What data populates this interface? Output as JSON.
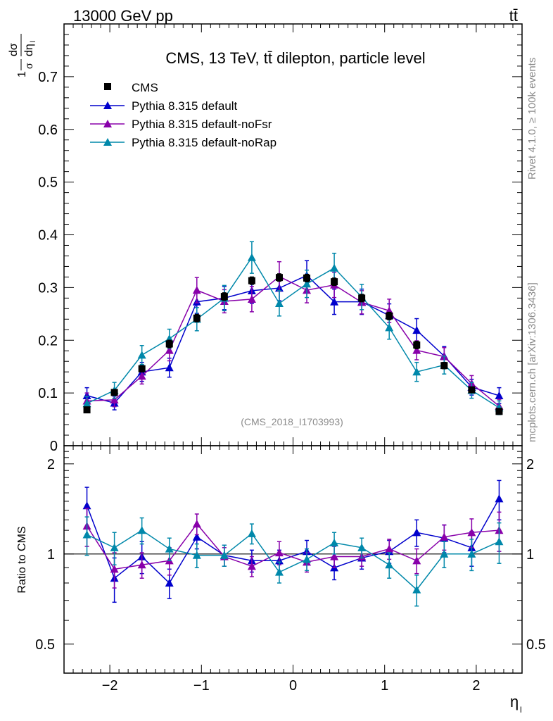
{
  "header": {
    "left": "13000 GeV pp",
    "right": "tt̄"
  },
  "side_labels": {
    "top": "Rivet 4.1.0, ≥ 100k events",
    "bottom": "mcplots.cern.ch [arXiv:1306.3436]"
  },
  "colors": {
    "CMS": "#000000",
    "default": "#0000cc",
    "noFsr": "#8800aa",
    "noRap": "#0088aa"
  },
  "chart_data": [
    {
      "type": "scatter",
      "title": "CMS, 13 TeV, tt̄ dilepton, particle level",
      "watermark": "(CMS_2018_I1703993)",
      "ylabel": "1/σ dσ/dη_l",
      "xlabel": "η_l",
      "xlim": [
        -2.5,
        2.5
      ],
      "ylim": [
        0,
        0.8
      ],
      "yticks": [
        "0",
        "0.1",
        "0.2",
        "0.3",
        "0.4",
        "0.5",
        "0.6",
        "0.7"
      ],
      "x": [
        -2.25,
        -1.95,
        -1.65,
        -1.35,
        -1.05,
        -0.75,
        -0.45,
        -0.15,
        0.15,
        0.45,
        0.75,
        1.05,
        1.35,
        1.65,
        1.95,
        2.25
      ],
      "legend": [
        "CMS",
        "Pythia 8.315 default",
        "Pythia 8.315 default-noFsr",
        "Pythia 8.315 default-noRap"
      ],
      "series": [
        {
          "name": "CMS",
          "values": [
            0.068,
            0.101,
            0.146,
            0.193,
            0.242,
            0.283,
            0.313,
            0.319,
            0.318,
            0.311,
            0.28,
            0.246,
            0.191,
            0.152,
            0.106,
            0.065
          ],
          "errors": [
            0.004,
            0.005,
            0.006,
            0.007,
            0.007,
            0.007,
            0.007,
            0.007,
            0.007,
            0.007,
            0.007,
            0.007,
            0.007,
            0.006,
            0.005,
            0.004
          ]
        },
        {
          "name": "Pythia 8.315 default",
          "values": [
            0.095,
            0.081,
            0.14,
            0.148,
            0.273,
            0.28,
            0.294,
            0.299,
            0.323,
            0.273,
            0.273,
            0.247,
            0.219,
            0.17,
            0.111,
            0.095
          ],
          "errors": [
            0.015,
            0.013,
            0.018,
            0.018,
            0.022,
            0.022,
            0.024,
            0.024,
            0.028,
            0.024,
            0.024,
            0.022,
            0.022,
            0.018,
            0.015,
            0.015
          ]
        },
        {
          "name": "Pythia 8.315 default-noFsr",
          "values": [
            0.085,
            0.087,
            0.132,
            0.181,
            0.295,
            0.274,
            0.278,
            0.321,
            0.295,
            0.305,
            0.272,
            0.256,
            0.181,
            0.169,
            0.118,
            0.075
          ],
          "errors": [
            0.015,
            0.013,
            0.015,
            0.02,
            0.024,
            0.022,
            0.024,
            0.028,
            0.024,
            0.024,
            0.022,
            0.022,
            0.018,
            0.017,
            0.015,
            0.013
          ]
        },
        {
          "name": "Pythia 8.315 default-noRap",
          "values": [
            0.08,
            0.105,
            0.172,
            0.203,
            0.24,
            0.28,
            0.357,
            0.27,
            0.307,
            0.337,
            0.282,
            0.224,
            0.14,
            0.153,
            0.105,
            0.072
          ],
          "errors": [
            0.013,
            0.015,
            0.018,
            0.018,
            0.022,
            0.024,
            0.03,
            0.024,
            0.026,
            0.028,
            0.024,
            0.022,
            0.018,
            0.017,
            0.015,
            0.013
          ]
        }
      ]
    },
    {
      "type": "scatter",
      "ylabel": "Ratio to CMS",
      "xlabel": "η_l",
      "xlim": [
        -2.5,
        2.5
      ],
      "ylim": [
        0.4,
        2.3
      ],
      "ylog": true,
      "yticks": [
        "0.5",
        "1",
        "2"
      ],
      "xticks": [
        "−2",
        "−1",
        "0",
        "1",
        "2"
      ],
      "x": [
        -2.25,
        -1.95,
        -1.65,
        -1.35,
        -1.05,
        -0.75,
        -0.45,
        -0.15,
        0.15,
        0.45,
        0.75,
        1.05,
        1.35,
        1.65,
        1.95,
        2.25
      ],
      "series": [
        {
          "name": "Pythia 8.315 default",
          "values": [
            1.45,
            0.83,
            0.98,
            0.8,
            1.14,
            0.99,
            0.95,
            0.95,
            1.02,
            0.9,
            0.97,
            1.02,
            1.18,
            1.13,
            1.05,
            1.53
          ],
          "errors": [
            0.22,
            0.14,
            0.12,
            0.09,
            0.1,
            0.08,
            0.08,
            0.08,
            0.09,
            0.08,
            0.08,
            0.09,
            0.12,
            0.12,
            0.14,
            0.23
          ]
        },
        {
          "name": "Pythia 8.315 default-noFsr",
          "values": [
            1.24,
            0.89,
            0.92,
            0.95,
            1.26,
            0.98,
            0.91,
            1.01,
            0.94,
            0.98,
            0.98,
            1.04,
            0.95,
            1.14,
            1.18,
            1.2
          ],
          "errors": [
            0.18,
            0.12,
            0.09,
            0.1,
            0.1,
            0.07,
            0.07,
            0.09,
            0.07,
            0.08,
            0.07,
            0.08,
            0.09,
            0.11,
            0.13,
            0.18
          ]
        },
        {
          "name": "Pythia 8.315 default-noRap",
          "values": [
            1.16,
            1.05,
            1.2,
            1.04,
            0.99,
            0.99,
            1.17,
            0.87,
            0.96,
            1.09,
            1.05,
            0.92,
            0.76,
            1.0,
            1.0,
            1.1
          ],
          "errors": [
            0.17,
            0.13,
            0.12,
            0.09,
            0.09,
            0.08,
            0.09,
            0.07,
            0.08,
            0.09,
            0.08,
            0.09,
            0.09,
            0.1,
            0.12,
            0.17
          ]
        }
      ]
    }
  ]
}
